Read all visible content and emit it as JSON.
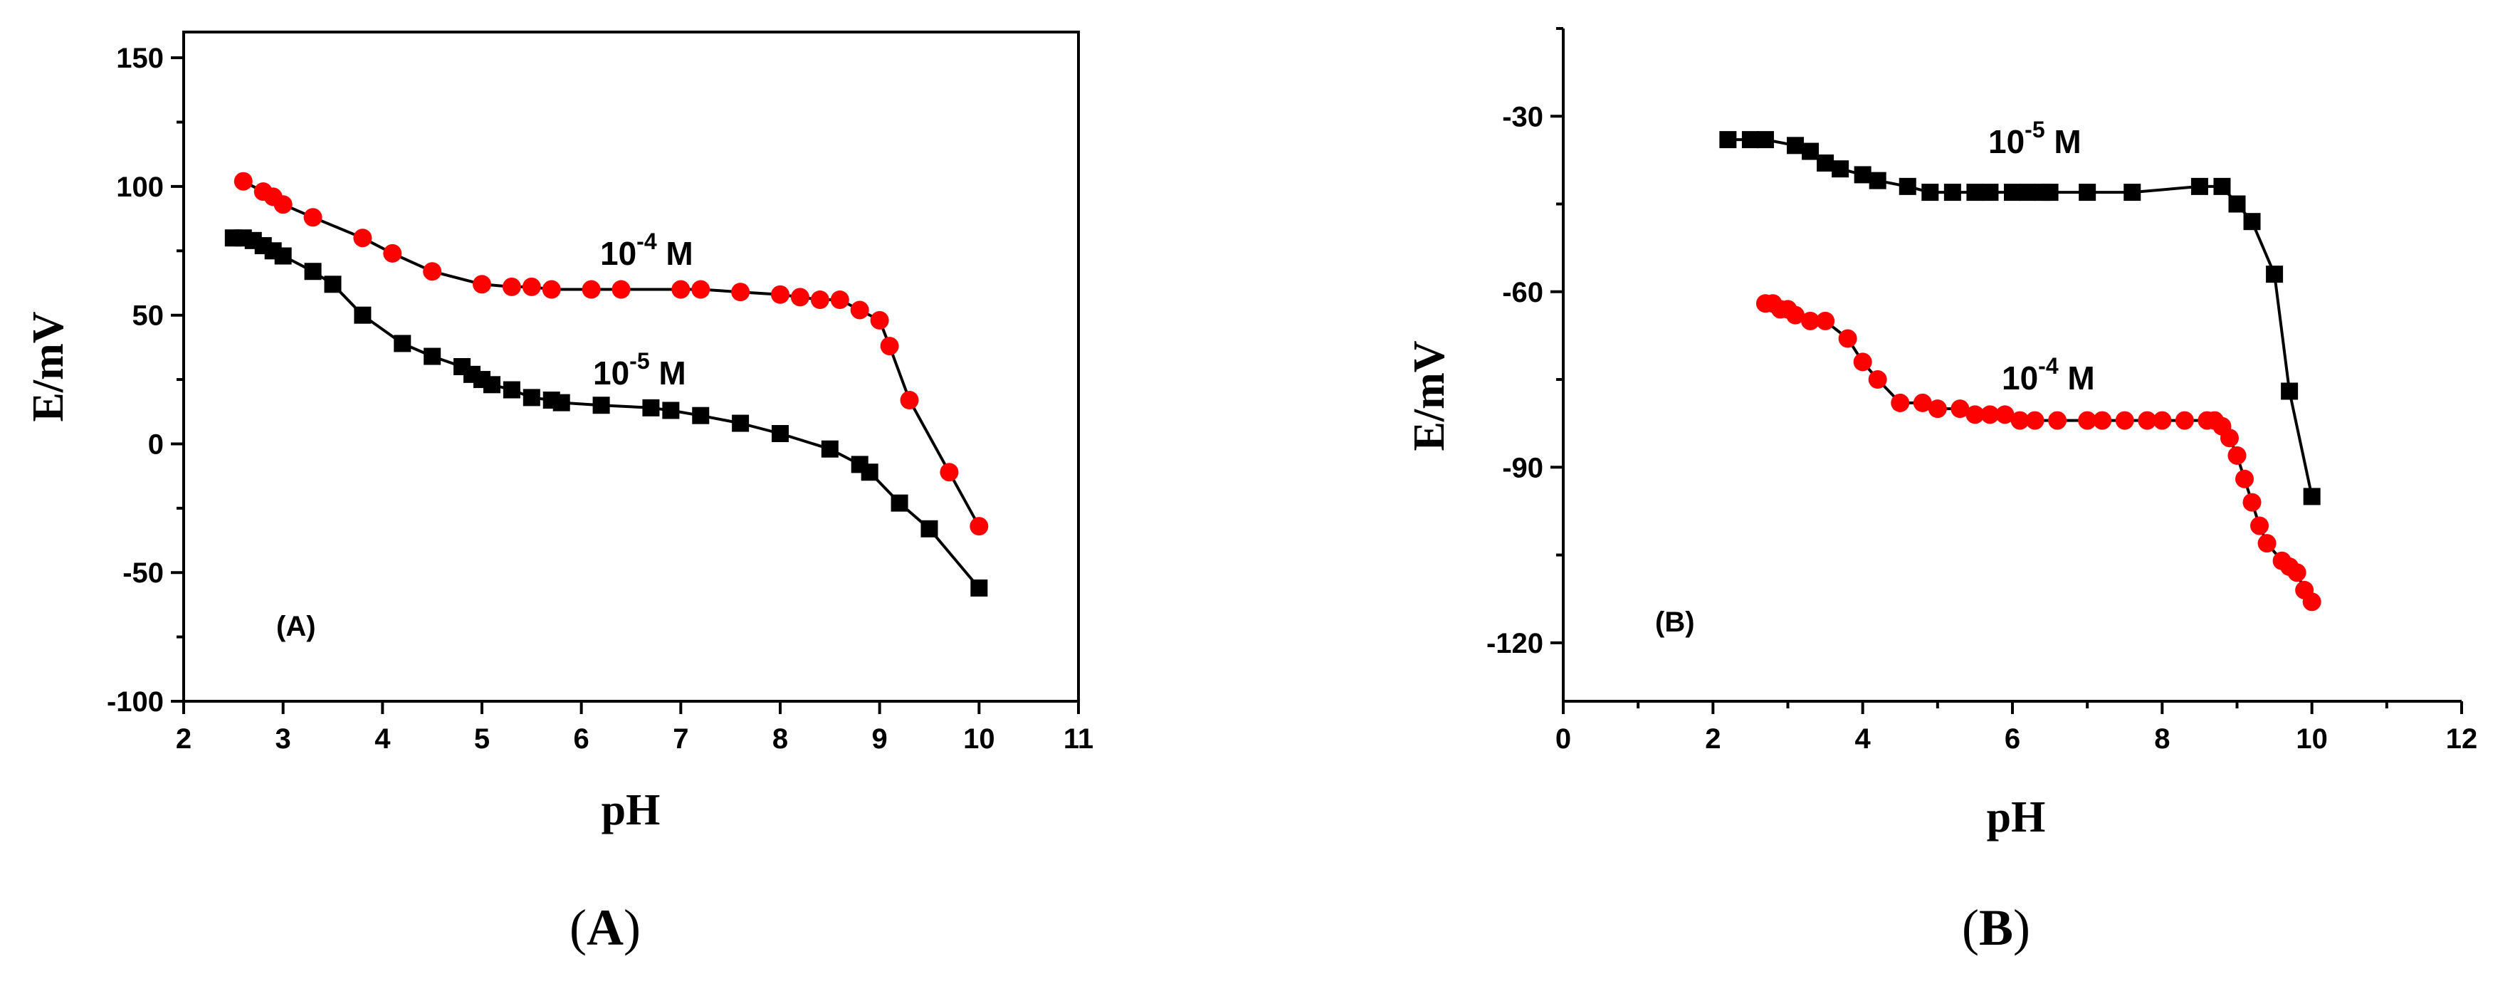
{
  "chart_data": [
    {
      "type": "line",
      "caption": "A",
      "panel_label": "(A)",
      "xlabel": "pH",
      "ylabel": "E/mV",
      "xlim": [
        2,
        11
      ],
      "ylim": [
        -100,
        160
      ],
      "xticks": [
        "2",
        "3",
        "4",
        "5",
        "6",
        "7",
        "8",
        "9",
        "10",
        "11"
      ],
      "yticks": [
        "-100",
        "-50",
        "0",
        "50",
        "100",
        "150"
      ],
      "grid": false,
      "series": [
        {
          "name": "10-4 M",
          "label_base": "10",
          "label_exp": "-4",
          "label_unit": "M",
          "color": "#ff0000",
          "marker": "circle",
          "x": [
            2.6,
            2.8,
            2.9,
            3.0,
            3.3,
            3.8,
            4.1,
            4.5,
            5.0,
            5.3,
            5.5,
            5.7,
            6.1,
            6.4,
            7.0,
            7.2,
            7.6,
            8.0,
            8.2,
            8.4,
            8.6,
            8.8,
            9.0,
            9.1,
            9.3,
            9.7,
            10.0
          ],
          "y": [
            102,
            98,
            96,
            93,
            88,
            80,
            74,
            67,
            62,
            61,
            61,
            60,
            60,
            60,
            60,
            60,
            59,
            58,
            57,
            56,
            56,
            52,
            48,
            38,
            17,
            -11,
            -32
          ]
        },
        {
          "name": "10-5 M",
          "label_base": "10",
          "label_exp": "-5",
          "label_unit": "M",
          "color": "#000000",
          "marker": "square",
          "x": [
            2.5,
            2.6,
            2.7,
            2.8,
            2.9,
            3.0,
            3.3,
            3.5,
            3.8,
            4.2,
            4.5,
            4.8,
            4.9,
            5.0,
            5.1,
            5.3,
            5.5,
            5.7,
            5.8,
            6.2,
            6.7,
            6.9,
            7.2,
            7.6,
            8.0,
            8.5,
            8.8,
            8.9,
            9.2,
            9.5,
            10.0
          ],
          "y": [
            80,
            80,
            79,
            77,
            75,
            73,
            67,
            62,
            50,
            39,
            34,
            30,
            27,
            25,
            23,
            21,
            18,
            17,
            16,
            15,
            14,
            13,
            11,
            8,
            4,
            -2,
            -8,
            -11,
            -23,
            -33,
            -56
          ]
        }
      ]
    },
    {
      "type": "line",
      "caption": "B",
      "panel_label": "(B)",
      "xlabel": "pH",
      "ylabel": "E/mV",
      "xlim": [
        0,
        12
      ],
      "ylim": [
        -130,
        -15
      ],
      "xticks": [
        "0",
        "2",
        "4",
        "6",
        "8",
        "10",
        "12"
      ],
      "yticks": [
        "-120",
        "-90",
        "-60",
        "-30"
      ],
      "grid": false,
      "series": [
        {
          "name": "10-5 M",
          "label_base": "10",
          "label_exp": "-5",
          "label_unit": "M",
          "color": "#000000",
          "marker": "square",
          "x": [
            2.2,
            2.5,
            2.7,
            3.1,
            3.3,
            3.5,
            3.7,
            4.0,
            4.2,
            4.6,
            4.9,
            5.2,
            5.5,
            5.7,
            6.0,
            6.2,
            6.4,
            6.5,
            7.0,
            7.6,
            8.5,
            8.8,
            9.0,
            9.2,
            9.5,
            9.7,
            10.0
          ],
          "y": [
            -34,
            -34,
            -34,
            -35,
            -36,
            -38,
            -39,
            -40,
            -41,
            -42,
            -43,
            -43,
            -43,
            -43,
            -43,
            -43,
            -43,
            -43,
            -43,
            -43,
            -42,
            -42,
            -45,
            -48,
            -57,
            -77,
            -95
          ]
        },
        {
          "name": "10-4 M",
          "label_base": "10",
          "label_exp": "-4",
          "label_unit": "M",
          "color": "#ff0000",
          "marker": "circle",
          "x": [
            2.7,
            2.8,
            2.9,
            3.0,
            3.1,
            3.3,
            3.5,
            3.8,
            4.0,
            4.2,
            4.5,
            4.8,
            5.0,
            5.3,
            5.5,
            5.7,
            5.9,
            6.1,
            6.3,
            6.6,
            7.0,
            7.2,
            7.5,
            7.8,
            8.0,
            8.3,
            8.6,
            8.7,
            8.8,
            8.9,
            9.0,
            9.1,
            9.2,
            9.3,
            9.4,
            9.6,
            9.7,
            9.8,
            9.9,
            10.0
          ],
          "y": [
            -62,
            -62,
            -63,
            -63,
            -64,
            -65,
            -65,
            -68,
            -72,
            -75,
            -79,
            -79,
            -80,
            -80,
            -81,
            -81,
            -81,
            -82,
            -82,
            -82,
            -82,
            -82,
            -82,
            -82,
            -82,
            -82,
            -82,
            -82,
            -83,
            -85,
            -88,
            -92,
            -96,
            -100,
            -103,
            -106,
            -107,
            -108,
            -111,
            -113
          ]
        }
      ]
    }
  ]
}
